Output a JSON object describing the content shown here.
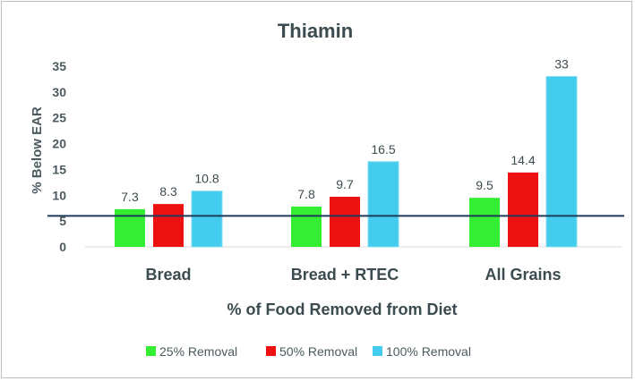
{
  "chart_data": {
    "type": "bar",
    "title": "Thiamin",
    "xlabel": "% of Food Removed from Diet",
    "ylabel": "% Below EAR",
    "ylim": [
      0,
      35
    ],
    "yticks": [
      0,
      5,
      10,
      15,
      20,
      25,
      30,
      35
    ],
    "categories": [
      "Bread",
      "Bread + RTEC",
      "All Grains"
    ],
    "series": [
      {
        "name": "25% Removal",
        "color": "#33ee33",
        "values": [
          7.3,
          7.8,
          9.5
        ]
      },
      {
        "name": "50% Removal",
        "color": "#ee1111",
        "values": [
          8.3,
          9.7,
          14.4
        ]
      },
      {
        "name": "100% Removal",
        "color": "#44ccee",
        "values": [
          10.8,
          16.5,
          33
        ]
      }
    ],
    "reference_line": {
      "value": 6,
      "color": "#1f3b5a"
    },
    "legend_position": "bottom",
    "grid": false
  }
}
